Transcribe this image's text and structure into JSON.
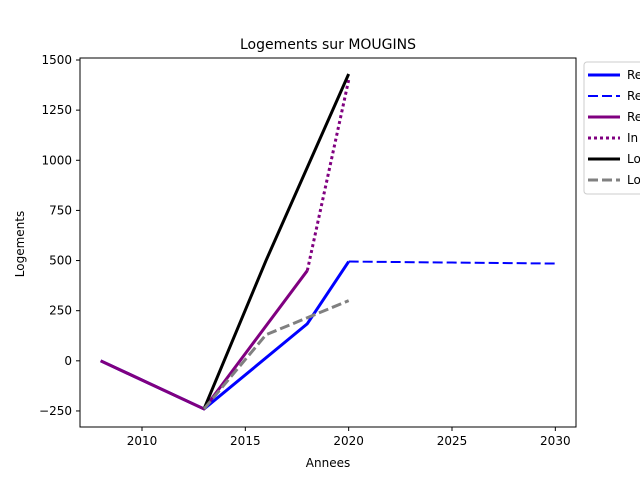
{
  "chart_data": {
    "type": "line",
    "title": "Logements sur MOUGINS",
    "xlabel": "Annees",
    "ylabel": "Logements",
    "xlim": [
      2007,
      2031
    ],
    "ylim": [
      -330,
      1510
    ],
    "xticks": [
      2010,
      2015,
      2020,
      2025,
      2030
    ],
    "yticks": [
      -250,
      0,
      250,
      500,
      750,
      1000,
      1250,
      1500
    ],
    "grid": false,
    "legend_position": "outside top-right",
    "series": [
      {
        "name": "Re",
        "color": "#0000ff",
        "style": "solid",
        "width": 3,
        "points": [
          [
            2008,
            0
          ],
          [
            2013,
            -240
          ],
          [
            2018,
            185
          ],
          [
            2020,
            495
          ]
        ]
      },
      {
        "name": "Re",
        "color": "#0000ff",
        "style": "dashed",
        "width": 2,
        "points": [
          [
            2020,
            495
          ],
          [
            2025,
            490
          ],
          [
            2030,
            485
          ]
        ]
      },
      {
        "name": "Re",
        "color": "#800080",
        "style": "solid",
        "width": 3,
        "points": [
          [
            2008,
            0
          ],
          [
            2013,
            -240
          ],
          [
            2018,
            450
          ]
        ]
      },
      {
        "name": "In",
        "color": "#800080",
        "style": "dotted",
        "width": 3,
        "points": [
          [
            2018,
            450
          ],
          [
            2020,
            1400
          ]
        ]
      },
      {
        "name": "Lo",
        "color": "#000000",
        "style": "solid",
        "width": 3,
        "points": [
          [
            2013,
            -240
          ],
          [
            2016,
            500
          ],
          [
            2020,
            1430
          ]
        ]
      },
      {
        "name": "Lo",
        "color": "#808080",
        "style": "dashed",
        "width": 3,
        "points": [
          [
            2013,
            -240
          ],
          [
            2016,
            130
          ],
          [
            2018,
            215
          ],
          [
            2020,
            300
          ]
        ]
      }
    ]
  }
}
